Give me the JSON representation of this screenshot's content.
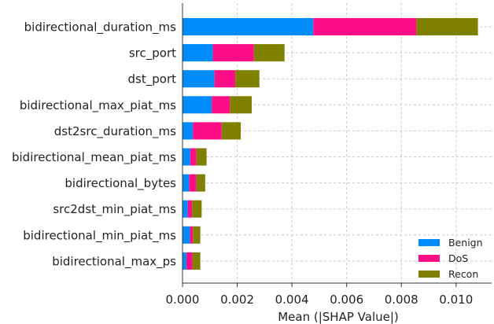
{
  "chart_data": {
    "type": "bar",
    "orientation": "horizontal",
    "stacked": true,
    "title": "",
    "xlabel": "Mean (|SHAP Value|)",
    "ylabel": "",
    "xlim": [
      0,
      0.0113
    ],
    "x_ticks": [
      0.0,
      0.002,
      0.004,
      0.006,
      0.008,
      0.01
    ],
    "x_tick_labels": [
      "0.000",
      "0.002",
      "0.004",
      "0.006",
      "0.008",
      "0.010"
    ],
    "grid": true,
    "legend_position": "bottom-right",
    "categories": [
      "bidirectional_duration_ms",
      "src_port",
      "dst_port",
      "bidirectional_max_piat_ms",
      "dst2src_duration_ms",
      "bidirectional_mean_piat_ms",
      "bidirectional_bytes",
      "src2dst_min_piat_ms",
      "bidirectional_min_piat_ms",
      "bidirectional_max_ps"
    ],
    "series": [
      {
        "name": "Benign",
        "color": "#008bfb",
        "values": [
          0.00478,
          0.00111,
          0.00117,
          0.00107,
          0.00038,
          0.00028,
          0.00024,
          0.00019,
          0.00027,
          0.00014
        ]
      },
      {
        "name": "DoS",
        "color": "#ff0d87",
        "values": [
          0.00377,
          0.0015,
          0.00076,
          0.00066,
          0.00105,
          0.00022,
          0.00026,
          0.00016,
          0.00011,
          0.00023
        ]
      },
      {
        "name": "Recon",
        "color": "#808000",
        "values": [
          0.00225,
          0.00112,
          0.00088,
          0.0008,
          0.0007,
          0.00038,
          0.00033,
          0.00035,
          0.00027,
          0.00028
        ]
      }
    ]
  }
}
